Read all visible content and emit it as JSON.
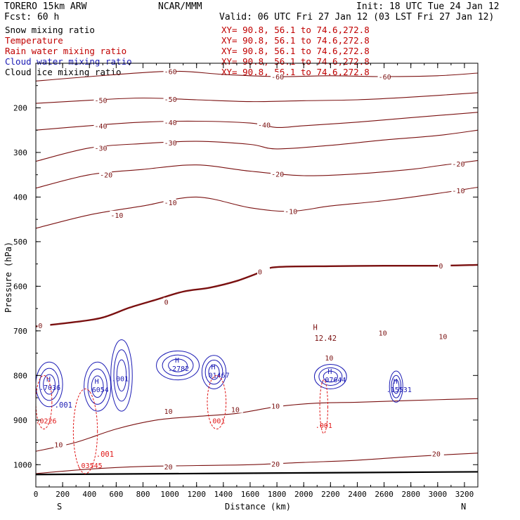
{
  "header": {
    "run": "TORERO  15km ARW",
    "center": "NCAR/MMM",
    "init": "Init: 18 UTC Tue 24 Jan 12",
    "fcst": "Fcst:   60 h",
    "valid": "Valid: 06 UTC Fri 27 Jan 12 (03 LST Fri 27 Jan 12)"
  },
  "legend": [
    {
      "label": "Snow mixing ratio",
      "color": "#000000",
      "xy": "XY=  90.8, 56.1  to  74.6,272.8"
    },
    {
      "label": "Temperature",
      "color": "#c00000",
      "xy": "XY=  90.8, 56.1  to  74.6,272.8"
    },
    {
      "label": "Rain water mixing ratio",
      "color": "#c00000",
      "xy": "XY=  90.8, 56.1  to  74.6,272.8"
    },
    {
      "label": "Cloud water mixing ratio",
      "color": "#1a1ab4",
      "xy": "XY=  90.8, 56.1  to  74.6,272.8"
    },
    {
      "label": "Cloud ice mixing ratio",
      "color": "#000000",
      "xy": "XY=  90.8, 56.1  to  74.6,272.8"
    }
  ],
  "colors": {
    "temperature": "#7a1010",
    "freezing": "#7a1010",
    "rain": "#e01818",
    "cloud_water": "#1a1ab4",
    "ground": "#000000"
  },
  "chart_data": {
    "type": "contour",
    "title": "",
    "xlabel": "Distance (km)",
    "ylabel": "Pressure (hPa)",
    "xlim": [
      0,
      3300
    ],
    "ylim": [
      1050,
      100
    ],
    "x_ticks": [
      0,
      200,
      400,
      600,
      800,
      1000,
      1200,
      1400,
      1600,
      1800,
      2000,
      2200,
      2400,
      2600,
      2800,
      3000,
      3200
    ],
    "y_ticks": [
      200,
      300,
      400,
      500,
      600,
      700,
      800,
      900,
      1000
    ],
    "x_end_labels": {
      "left": "S",
      "right": "N"
    },
    "temperature_isotherms": [
      {
        "level": -60,
        "points": [
          [
            0,
            140
          ],
          [
            400,
            130
          ],
          [
            1000,
            118
          ],
          [
            1400,
            125
          ],
          [
            1800,
            130
          ],
          [
            2200,
            128
          ],
          [
            2600,
            130
          ],
          [
            3000,
            128
          ],
          [
            3300,
            122
          ]
        ]
      },
      {
        "level": -50,
        "points": [
          [
            0,
            190
          ],
          [
            400,
            183
          ],
          [
            800,
            178
          ],
          [
            1200,
            182
          ],
          [
            1600,
            186
          ],
          [
            2000,
            184
          ],
          [
            2400,
            182
          ],
          [
            2800,
            176
          ],
          [
            3300,
            166
          ]
        ]
      },
      {
        "level": -40,
        "points": [
          [
            0,
            250
          ],
          [
            400,
            240
          ],
          [
            800,
            232
          ],
          [
            1200,
            230
          ],
          [
            1600,
            234
          ],
          [
            1800,
            244
          ],
          [
            2000,
            240
          ],
          [
            2400,
            232
          ],
          [
            2800,
            222
          ],
          [
            3300,
            210
          ]
        ]
      },
      {
        "level": -30,
        "points": [
          [
            0,
            320
          ],
          [
            400,
            290
          ],
          [
            800,
            280
          ],
          [
            1200,
            275
          ],
          [
            1600,
            282
          ],
          [
            1800,
            292
          ],
          [
            2200,
            284
          ],
          [
            2600,
            272
          ],
          [
            3000,
            262
          ],
          [
            3300,
            250
          ]
        ]
      },
      {
        "level": -20,
        "points": [
          [
            0,
            380
          ],
          [
            400,
            350
          ],
          [
            800,
            338
          ],
          [
            1200,
            328
          ],
          [
            1600,
            342
          ],
          [
            2000,
            352
          ],
          [
            2400,
            348
          ],
          [
            2800,
            338
          ],
          [
            3000,
            330
          ],
          [
            3300,
            318
          ]
        ]
      },
      {
        "level": -10,
        "points": [
          [
            0,
            470
          ],
          [
            400,
            440
          ],
          [
            800,
            420
          ],
          [
            1200,
            400
          ],
          [
            1600,
            424
          ],
          [
            1900,
            432
          ],
          [
            2200,
            420
          ],
          [
            2600,
            408
          ],
          [
            3000,
            392
          ],
          [
            3300,
            378
          ]
        ]
      },
      {
        "level": 0,
        "points": [
          [
            0,
            690
          ],
          [
            300,
            680
          ],
          [
            500,
            670
          ],
          [
            700,
            648
          ],
          [
            900,
            630
          ],
          [
            1100,
            612
          ],
          [
            1300,
            603
          ],
          [
            1500,
            588
          ],
          [
            1700,
            566
          ],
          [
            1800,
            557
          ],
          [
            2200,
            555
          ],
          [
            2600,
            554
          ],
          [
            3000,
            554
          ],
          [
            3300,
            552
          ]
        ]
      },
      {
        "level": 10,
        "points": [
          [
            0,
            970
          ],
          [
            300,
            950
          ],
          [
            600,
            920
          ],
          [
            900,
            900
          ],
          [
            1200,
            892
          ],
          [
            1500,
            885
          ],
          [
            1800,
            870
          ],
          [
            2100,
            862
          ],
          [
            2400,
            860
          ],
          [
            2800,
            856
          ],
          [
            3300,
            852
          ]
        ]
      },
      {
        "level": 20,
        "points": [
          [
            0,
            1020
          ],
          [
            400,
            1010
          ],
          [
            800,
            1004
          ],
          [
            1200,
            1002
          ],
          [
            1600,
            1000
          ],
          [
            2000,
            995
          ],
          [
            2400,
            990
          ],
          [
            2800,
            982
          ],
          [
            3300,
            974
          ]
        ]
      }
    ],
    "labels": [
      {
        "text": "-60",
        "x": 1000,
        "p": 118
      },
      {
        "text": "-60",
        "x": 1800,
        "p": 130
      },
      {
        "text": "-60",
        "x": 2600,
        "p": 130
      },
      {
        "text": "-50",
        "x": 480,
        "p": 183
      },
      {
        "text": "-50",
        "x": 1000,
        "p": 180
      },
      {
        "text": "-40",
        "x": 480,
        "p": 240
      },
      {
        "text": "-40",
        "x": 1000,
        "p": 232
      },
      {
        "text": "-40",
        "x": 1700,
        "p": 238
      },
      {
        "text": "-30",
        "x": 480,
        "p": 290
      },
      {
        "text": "-30",
        "x": 1000,
        "p": 278
      },
      {
        "text": "-20",
        "x": 520,
        "p": 350
      },
      {
        "text": "-20",
        "x": 1800,
        "p": 348
      },
      {
        "text": "-20",
        "x": 3150,
        "p": 325
      },
      {
        "text": "-10",
        "x": 600,
        "p": 440
      },
      {
        "text": "-10",
        "x": 1000,
        "p": 412
      },
      {
        "text": "-10",
        "x": 1900,
        "p": 432
      },
      {
        "text": "-10",
        "x": 3150,
        "p": 385
      },
      {
        "text": "0",
        "x": 60,
        "p": 688
      },
      {
        "text": "0",
        "x": 1000,
        "p": 635
      },
      {
        "text": "0",
        "x": 1700,
        "p": 567
      },
      {
        "text": "0",
        "x": 3050,
        "p": 554
      },
      {
        "text": "10",
        "x": 2600,
        "p": 704
      },
      {
        "text": "10",
        "x": 3050,
        "p": 712
      },
      {
        "text": "10",
        "x": 2200,
        "p": 760
      },
      {
        "text": "10",
        "x": 1800,
        "p": 868
      },
      {
        "text": "10",
        "x": 1500,
        "p": 876
      },
      {
        "text": "10",
        "x": 1000,
        "p": 880
      },
      {
        "text": "10",
        "x": 180,
        "p": 955
      },
      {
        "text": "20",
        "x": 1000,
        "p": 1004
      },
      {
        "text": "20",
        "x": 1800,
        "p": 998
      },
      {
        "text": "20",
        "x": 3000,
        "p": 975
      }
    ],
    "cloud_water_cells": [
      {
        "x": [
          0,
          200
        ],
        "p": [
          770,
          870
        ],
        "label": ".7036",
        "h": true
      },
      {
        "x": [
          360,
          560
        ],
        "p": [
          770,
          880
        ],
        "label": ".6054",
        "h": true
      },
      {
        "x": [
          560,
          720
        ],
        "p": [
          720,
          880
        ],
        "label": ".001",
        "h": false
      },
      {
        "x": [
          900,
          1220
        ],
        "p": [
          745,
          810
        ],
        "label": ".2782",
        "h": true
      },
      {
        "x": [
          1240,
          1420
        ],
        "p": [
          755,
          830
        ],
        "label": ".01467",
        "h": true
      },
      {
        "x": [
          2080,
          2320
        ],
        "p": [
          775,
          830
        ],
        "label": ".07644",
        "h": true
      },
      {
        "x": [
          2640,
          2740
        ],
        "p": [
          790,
          860
        ],
        "label": ".15531",
        "h": true
      }
    ],
    "rain_cells": [
      {
        "x": [
          0,
          120
        ],
        "p": [
          800,
          920
        ],
        "label": ".0226"
      },
      {
        "x": [
          280,
          460
        ],
        "p": [
          830,
          1020
        ],
        "label": ".03545"
      },
      {
        "x": [
          1280,
          1420
        ],
        "p": [
          800,
          920
        ],
        "label": ".001"
      },
      {
        "x": [
          2120,
          2180
        ],
        "p": [
          810,
          930
        ],
        "label": ".001"
      }
    ],
    "extra_labels": [
      {
        "text": "12.42",
        "x": 2080,
        "p": 722,
        "color": "temperature"
      },
      {
        "text": ".001",
        "x": 140,
        "p": 872,
        "color": "cloud_water"
      },
      {
        "text": ".001",
        "x": 450,
        "p": 982,
        "color": "rain"
      },
      {
        "text": "H",
        "x": 2070,
        "p": 698,
        "color": "temperature"
      }
    ]
  }
}
